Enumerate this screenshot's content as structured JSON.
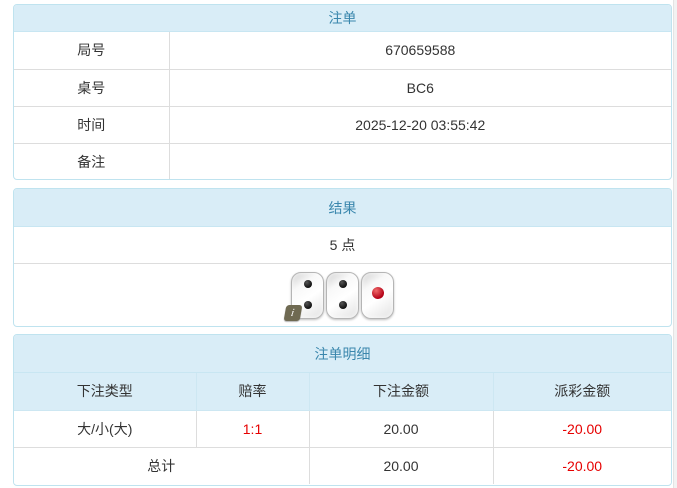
{
  "colors": {
    "header_text": "#3a87ad",
    "header_bg": "#d9edf7",
    "panel_border": "#bfe3ef",
    "negative": "#e60000",
    "text": "#333333"
  },
  "bet_order": {
    "title": "注单",
    "rows": [
      {
        "label": "局号",
        "value": "670659588"
      },
      {
        "label": "桌号",
        "value": "BC6"
      },
      {
        "label": "时间",
        "value": "2025-12-20 03:55:42"
      },
      {
        "label": "备注",
        "value": ""
      }
    ]
  },
  "result": {
    "title": "结果",
    "points": "5 点",
    "dice": [
      {
        "value": 2,
        "color": "black"
      },
      {
        "value": 2,
        "color": "black"
      },
      {
        "value": 1,
        "color": "red"
      }
    ],
    "info_icon_label": "i"
  },
  "bet_detail": {
    "title": "注单明细",
    "columns": [
      "下注类型",
      "赔率",
      "下注金额",
      "派彩金额"
    ],
    "rows": [
      {
        "type": "大/小(大)",
        "odds": "1:1",
        "amount": "20.00",
        "payout": "-20.00"
      }
    ],
    "total": {
      "label": "总计",
      "amount": "20.00",
      "payout": "-20.00"
    }
  }
}
